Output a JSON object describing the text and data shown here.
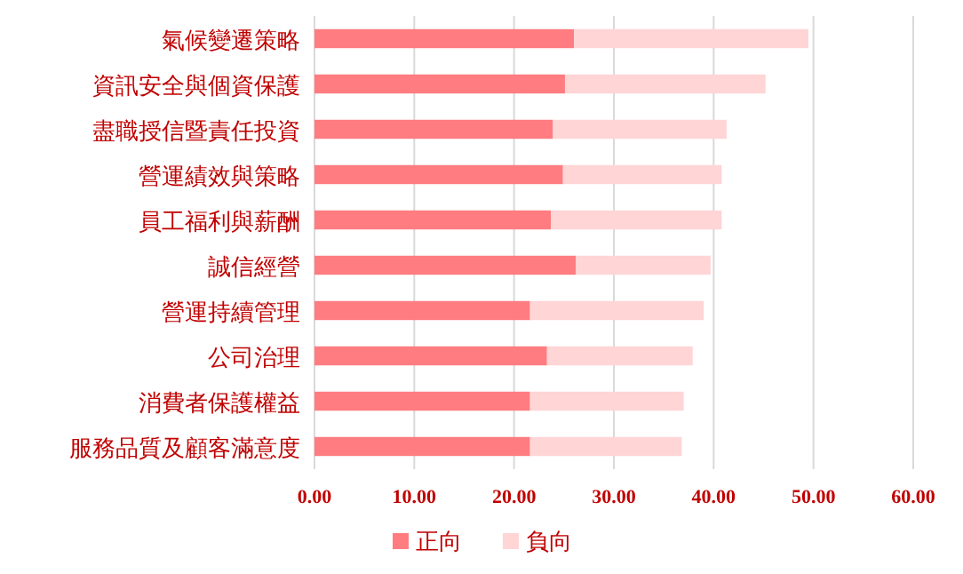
{
  "chart_data": {
    "type": "bar",
    "orientation": "horizontal",
    "stacked": true,
    "categories": [
      "氣候變遷策略",
      "資訊安全與個資保護",
      "盡職授信暨責任投資",
      "營運績效與策略",
      "員工福利與薪酬",
      "誠信經營",
      "營運持續管理",
      "公司治理",
      "消費者保護權益",
      "服務品質及顧客滿意度"
    ],
    "series": [
      {
        "name": "正向",
        "color": "#ff7c80",
        "values": [
          26.0,
          25.1,
          23.9,
          24.9,
          23.7,
          26.2,
          21.6,
          23.3,
          21.6,
          21.6
        ]
      },
      {
        "name": "負向",
        "color": "#ffd5d6",
        "values": [
          23.5,
          20.1,
          17.4,
          15.9,
          17.1,
          13.5,
          17.4,
          14.6,
          15.4,
          15.2
        ]
      }
    ],
    "xlim": [
      0,
      60
    ],
    "xticks": [
      {
        "value": 0,
        "label": "0.00"
      },
      {
        "value": 10,
        "label": "10.00"
      },
      {
        "value": 20,
        "label": "20.00"
      },
      {
        "value": 30,
        "label": "30.00"
      },
      {
        "value": 40,
        "label": "40.00"
      },
      {
        "value": 50,
        "label": "50.00"
      },
      {
        "value": 60,
        "label": "60.00"
      }
    ],
    "grid": "x",
    "legend": "bottom"
  }
}
